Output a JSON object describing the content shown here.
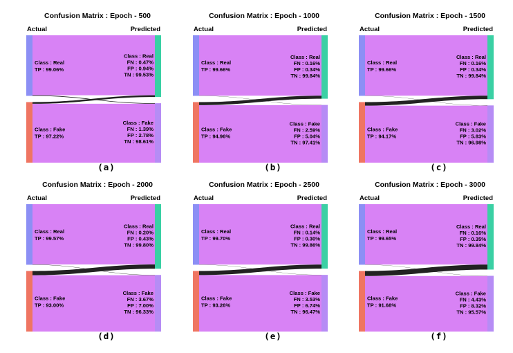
{
  "colors": {
    "real_node": "#8c8ff5",
    "fake_node": "#ef7562",
    "pred_real_node": "#3ad0a4",
    "pred_fake_node": "#b68cf5",
    "flow": "#d882f5",
    "cross": "#222222"
  },
  "chart_data": [
    {
      "type": "sankey",
      "panel_label": "(a)",
      "title": "Confusion Matrix : Epoch - 500",
      "left_heading": "Actual",
      "right_heading": "Predicted",
      "actual_real": [
        "Class : Real",
        "TP : 99.06%"
      ],
      "actual_fake": [
        "Class : Fake",
        "TP : 97.22%"
      ],
      "pred_real": [
        "Class : Real",
        "FN : 0.47%",
        "FP : 0.94%",
        "TN : 99.53%"
      ],
      "pred_fake": [
        "Class : Fake",
        "FN : 1.39%",
        "FP : 2.78%",
        "TN : 98.61%"
      ],
      "real_to_fake_pct": 0.94,
      "fake_to_real_pct": 2.78
    },
    {
      "type": "sankey",
      "panel_label": "(b)",
      "title": "Confusion Matrix : Epoch - 1000",
      "left_heading": "Actual",
      "right_heading": "Predicted",
      "actual_real": [
        "Class : Real",
        "TP : 99.66%"
      ],
      "actual_fake": [
        "Class : Fake",
        "TP : 94.96%"
      ],
      "pred_real": [
        "Class : Real",
        "FN : 0.16%",
        "FP : 0.34%",
        "TN : 99.84%"
      ],
      "pred_fake": [
        "Class : Fake",
        "FN : 2.59%",
        "FP : 5.04%",
        "TN : 97.41%"
      ],
      "real_to_fake_pct": 0.34,
      "fake_to_real_pct": 5.04
    },
    {
      "type": "sankey",
      "panel_label": "(c)",
      "title": "Confusion Matrix : Epoch - 1500",
      "left_heading": "Actual",
      "right_heading": "Predicted",
      "actual_real": [
        "Class : Real",
        "TP : 99.66%"
      ],
      "actual_fake": [
        "Class : Fake",
        "TP : 94.17%"
      ],
      "pred_real": [
        "Class : Real",
        "FN : 0.16%",
        "FP : 0.34%",
        "TN : 99.84%"
      ],
      "pred_fake": [
        "Class : Fake",
        "FN : 3.02%",
        "FP : 5.83%",
        "TN : 96.98%"
      ],
      "real_to_fake_pct": 0.34,
      "fake_to_real_pct": 5.83
    },
    {
      "type": "sankey",
      "panel_label": "(d)",
      "title": "Confusion Matrix : Epoch - 2000",
      "left_heading": "Actual",
      "right_heading": "Predicted",
      "actual_real": [
        "Class : Real",
        "TP : 99.57%"
      ],
      "actual_fake": [
        "Class : Fake",
        "TP : 93.00%"
      ],
      "pred_real": [
        "Class : Real",
        "FN : 0.20%",
        "FP : 0.43%",
        "TN : 99.80%"
      ],
      "pred_fake": [
        "Class : Fake",
        "FN : 3.67%",
        "FP : 7.00%",
        "TN : 96.33%"
      ],
      "real_to_fake_pct": 0.43,
      "fake_to_real_pct": 7.0
    },
    {
      "type": "sankey",
      "panel_label": "(e)",
      "title": "Confusion Matrix : Epoch - 2500",
      "left_heading": "Actual",
      "right_heading": "Predicted",
      "actual_real": [
        "Class : Real",
        "TP : 99.70%"
      ],
      "actual_fake": [
        "Class : Fake",
        "TP : 93.26%"
      ],
      "pred_real": [
        "Class : Real",
        "FN : 0.14%",
        "FP : 0.30%",
        "TN : 99.86%"
      ],
      "pred_fake": [
        "Class : Fake",
        "FN : 3.53%",
        "FP : 6.74%",
        "TN : 96.47%"
      ],
      "real_to_fake_pct": 0.3,
      "fake_to_real_pct": 6.74
    },
    {
      "type": "sankey",
      "panel_label": "(f)",
      "title": "Confusion Matrix : Epoch - 3000",
      "left_heading": "Actual",
      "right_heading": "Predicted",
      "actual_real": [
        "Class : Real",
        "TP : 99.65%"
      ],
      "actual_fake": [
        "Class : Fake",
        "TP : 91.68%"
      ],
      "pred_real": [
        "Class : Real",
        "FN : 0.16%",
        "FP : 0.35%",
        "TN : 99.84%"
      ],
      "pred_fake": [
        "Class : Fake",
        "FN : 4.43%",
        "FP : 8.32%",
        "TN : 95.57%"
      ],
      "real_to_fake_pct": 0.35,
      "fake_to_real_pct": 8.32
    }
  ]
}
